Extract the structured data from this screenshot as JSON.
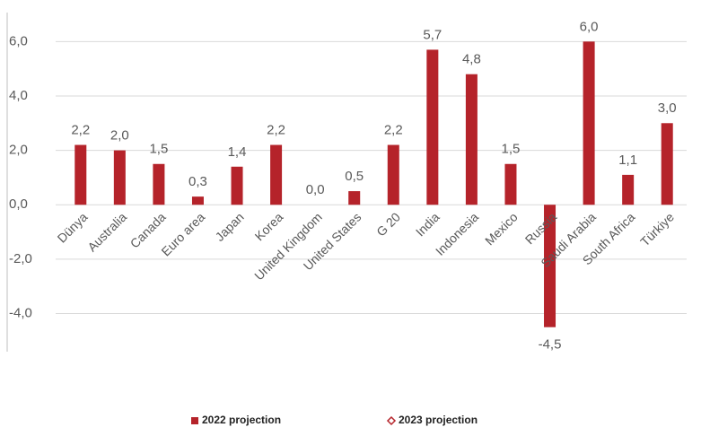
{
  "chart_data": {
    "type": "bar",
    "categories": [
      "Dünya",
      "Australia",
      "Canada",
      "Euro area",
      "Japan",
      "Korea",
      "United Kingdom",
      "United States",
      "G 20",
      "India",
      "Indonesia",
      "Mexico",
      "Russia",
      "Saudi Arabia",
      "South Africa",
      "Türkiye"
    ],
    "series": [
      {
        "name": "2022 projection",
        "color": "#b5232a",
        "marker": "square",
        "values": [
          2.2,
          2.0,
          1.5,
          0.3,
          1.4,
          2.2,
          0.0,
          0.5,
          2.2,
          5.7,
          4.8,
          1.5,
          -4.5,
          6.0,
          1.1,
          3.0
        ],
        "value_labels": [
          "2,2",
          "2,0",
          "1,5",
          "0,3",
          "1,4",
          "2,2",
          "0,0",
          "0,5",
          "2,2",
          "5,7",
          "4,8",
          "1,5",
          "-4,5",
          "6,0",
          "1,1",
          "3,0"
        ]
      },
      {
        "name": "2023 projection",
        "color": "#b5232a",
        "marker": "diamond",
        "values": [
          null,
          null,
          null,
          null,
          null,
          null,
          null,
          null,
          null,
          null,
          null,
          null,
          null,
          null,
          null,
          null
        ]
      }
    ],
    "ylim": [
      -5.5,
      7
    ],
    "yticks": [
      {
        "value": -4,
        "label": "-4,0"
      },
      {
        "value": -2,
        "label": "-2,0"
      },
      {
        "value": 0,
        "label": "0,0"
      },
      {
        "value": 2,
        "label": "2,0"
      },
      {
        "value": 4,
        "label": "4,0"
      },
      {
        "value": 6,
        "label": "6,0"
      }
    ],
    "grid": true
  }
}
